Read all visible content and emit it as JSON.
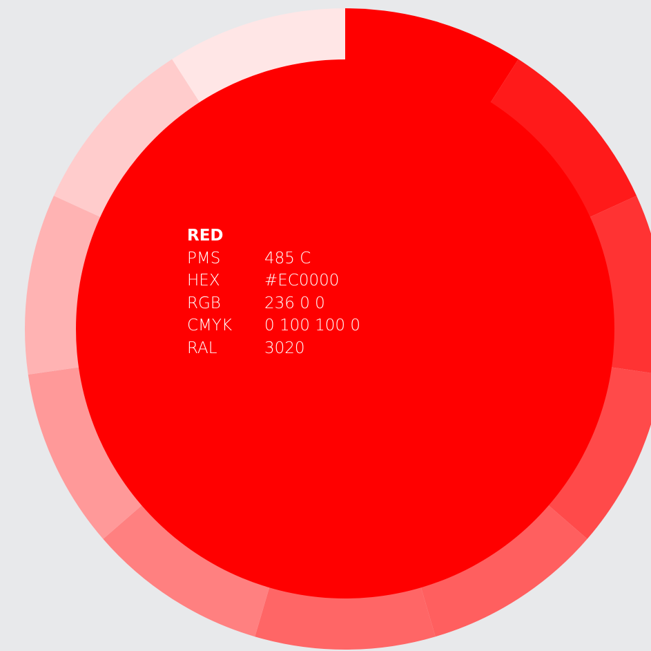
{
  "color": {
    "name": "RED",
    "specs": [
      {
        "label": "PMS",
        "value": "485 C"
      },
      {
        "label": "HEX",
        "value": "#EC0000"
      },
      {
        "label": "RGB",
        "value": "236 0 0"
      },
      {
        "label": "CMYK",
        "value": "0 100 100 0"
      },
      {
        "label": "RAL",
        "value": "3020"
      }
    ]
  },
  "palette": {
    "center_color": "#ff0000",
    "background_color": "#e8e9eb",
    "tints": [
      "#ff0000",
      "#ff1a1a",
      "#ff3333",
      "#ff4a4a",
      "#ff5f5f",
      "#ff6666",
      "#ff8080",
      "#ff9999",
      "#ffb3b3",
      "#ffcccc",
      "#ffe6e6"
    ]
  }
}
